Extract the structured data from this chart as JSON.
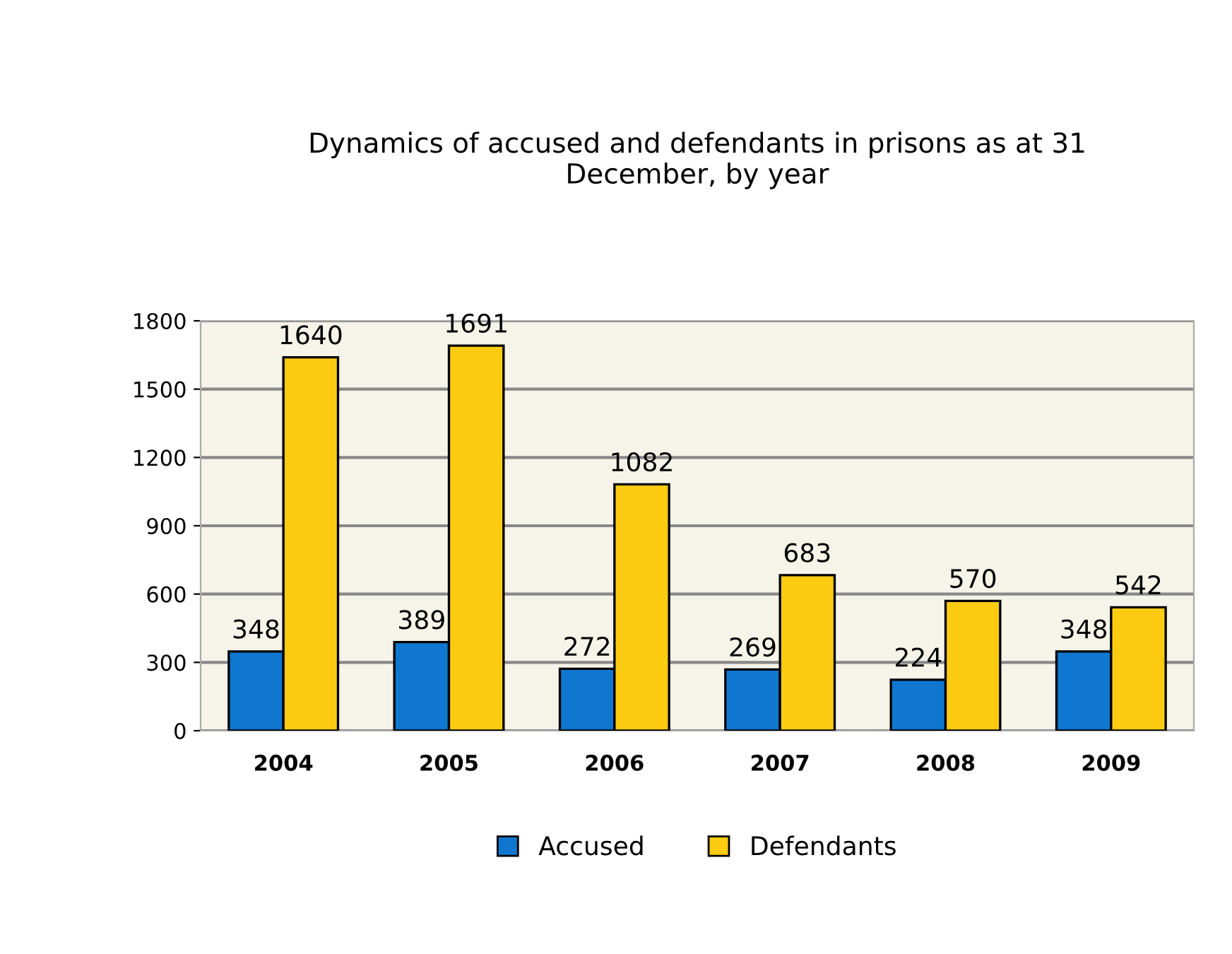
{
  "chart_data": {
    "type": "bar",
    "title": "Dynamics of accused and defendants in prisons as at 31\nDecember, by year",
    "categories": [
      "2004",
      "2005",
      "2006",
      "2007",
      "2008",
      "2009"
    ],
    "series": [
      {
        "name": "Accused",
        "color": "#0f77d0",
        "values": [
          348,
          389,
          272,
          269,
          224,
          348
        ]
      },
      {
        "name": "Defendants",
        "color": "#fdcb12",
        "values": [
          1640,
          1691,
          1082,
          683,
          570,
          542
        ]
      }
    ],
    "ylim": [
      0,
      1800
    ],
    "yticks": [
      0,
      300,
      600,
      900,
      1200,
      1500,
      1800
    ],
    "grid": "y",
    "legend": "bottom",
    "data_labels": true
  }
}
